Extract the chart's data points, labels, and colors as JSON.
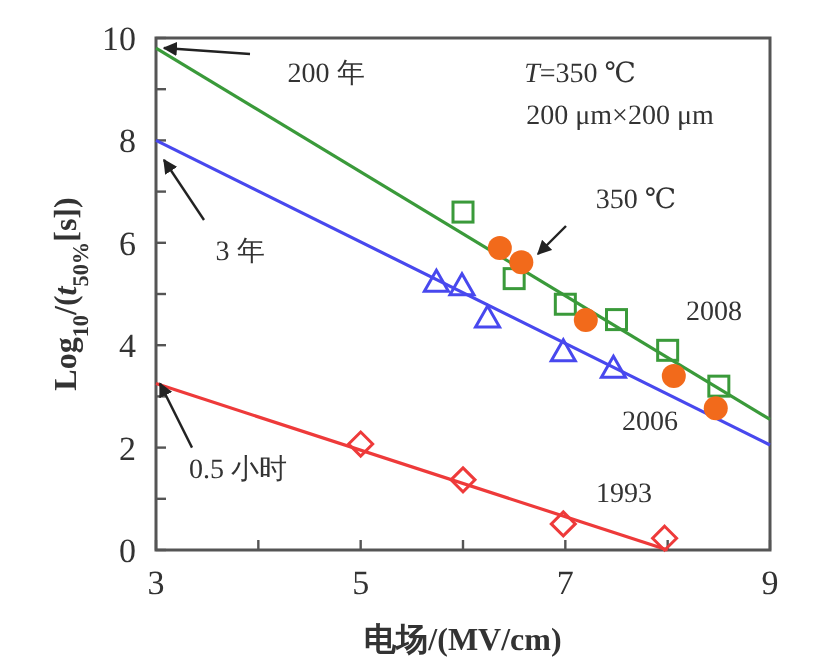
{
  "chart_data": {
    "type": "scatter",
    "xlabel": "电场/(MV/cm)",
    "ylabel": "Log$_{10}$/(*t*$_{50%}$[s])",
    "xlim": [
      3,
      9
    ],
    "ylim": [
      0,
      10
    ],
    "xticks": [
      3,
      {
        "value": 4,
        "label": null
      },
      5,
      {
        "value": 6,
        "label": null
      },
      7,
      {
        "value": 8,
        "label": null
      },
      9
    ],
    "yticks": [
      0,
      {
        "value": 1,
        "label": null
      },
      2,
      {
        "value": 3,
        "label": null
      },
      4,
      {
        "value": 5,
        "label": null
      },
      6,
      {
        "value": 7,
        "label": null
      },
      8,
      {
        "value": 9,
        "label": null
      },
      10
    ],
    "series": [
      {
        "name": "2008",
        "type": "line",
        "color": "#3a9a3a",
        "x": [
          3,
          9
        ],
        "values": [
          9.8,
          2.55
        ],
        "marker": "none"
      },
      {
        "name": "2006",
        "type": "line",
        "color": "#4848ee",
        "x": [
          3,
          9
        ],
        "values": [
          8.0,
          2.05
        ],
        "marker": "none"
      },
      {
        "name": "1993",
        "type": "line",
        "color": "#ee3a3a",
        "x": [
          3,
          8
        ],
        "values": [
          3.25,
          0.0
        ],
        "marker": "none"
      },
      {
        "color": "#3a9a3a",
        "marker": "square",
        "x": [
          6.0,
          6.5,
          7.0,
          7.5,
          8.0,
          8.5
        ],
        "values": [
          6.6,
          5.3,
          4.8,
          4.5,
          3.9,
          3.2
        ]
      },
      {
        "name": "350 ℃",
        "color": "#f26a1b",
        "marker": "circle",
        "x": [
          6.36,
          6.57,
          7.2,
          8.06,
          8.47
        ],
        "values": [
          5.9,
          5.62,
          4.49,
          3.4,
          2.77
        ]
      },
      {
        "color": "#4848ee",
        "marker": "triangle",
        "x": [
          5.74,
          5.99,
          6.24,
          6.98,
          7.47
        ],
        "values": [
          5.23,
          5.16,
          4.53,
          3.87,
          3.55
        ]
      },
      {
        "color": "#ee3a3a",
        "marker": "diamond",
        "x": [
          5.0,
          6.0,
          6.98,
          7.97
        ],
        "values": [
          2.07,
          1.37,
          0.51,
          0.23
        ]
      }
    ],
    "annotations": [
      "200 年",
      "*T*=350 ℃",
      "200 μm×200 μm",
      "3 年",
      {
        "text": "0.5 小时",
        "x": 3,
        "y": 3.25
      }
    ]
  }
}
